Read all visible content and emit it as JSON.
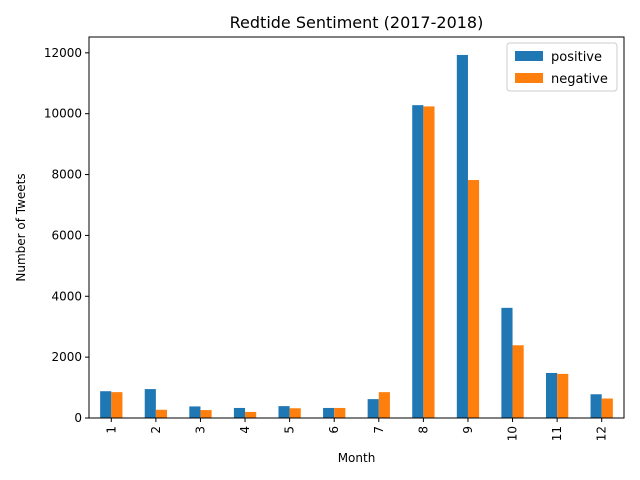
{
  "chart_data": {
    "type": "bar",
    "title": "Redtide Sentiment (2017-2018)",
    "xlabel": "Month",
    "ylabel": "Number of Tweets",
    "categories": [
      "1",
      "2",
      "3",
      "4",
      "5",
      "6",
      "7",
      "8",
      "9",
      "10",
      "11",
      "12"
    ],
    "series": [
      {
        "name": "positive",
        "color": "#1f77b4",
        "values": [
          880,
          950,
          380,
          330,
          390,
          330,
          620,
          10280,
          11930,
          3620,
          1480,
          780
        ]
      },
      {
        "name": "negative",
        "color": "#ff7f0e",
        "values": [
          850,
          270,
          260,
          200,
          320,
          330,
          850,
          10240,
          7820,
          2390,
          1450,
          640
        ]
      }
    ],
    "ylim": [
      0,
      12520
    ],
    "yticks": [
      0,
      2000,
      4000,
      6000,
      8000,
      10000,
      12000
    ],
    "grid": false,
    "legend_position": "top-right"
  }
}
